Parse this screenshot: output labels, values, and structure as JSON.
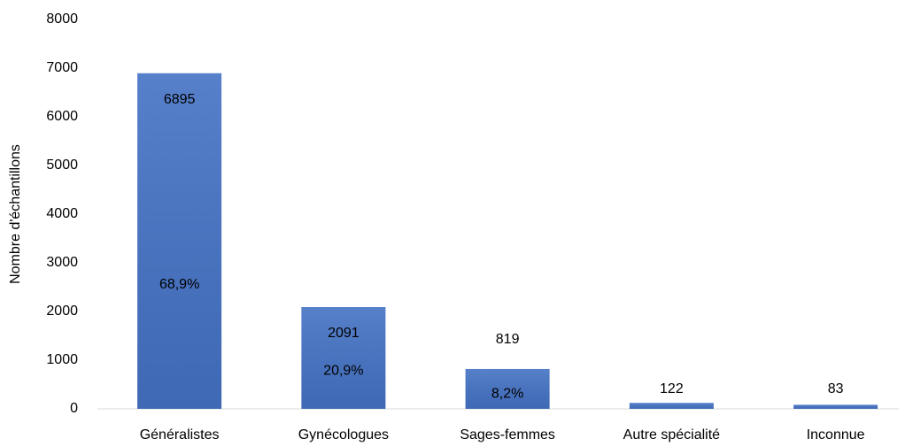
{
  "chart_data": {
    "type": "bar",
    "y_axis_label": "Nombre d'échantillons",
    "categories": [
      "Généralistes",
      "Gynécologues",
      "Sages-femmes",
      "Autre spécialité",
      "Inconnue"
    ],
    "values": [
      6895,
      2091,
      819,
      122,
      83
    ],
    "percent_labels": [
      "68,9%",
      "20,9%",
      "8,2%",
      null,
      null
    ],
    "color": "#4472c4",
    "ylim": [
      0,
      8000
    ],
    "yticks": [
      0,
      1000,
      2000,
      3000,
      4000,
      5000,
      6000,
      7000,
      8000
    ],
    "grid": false
  }
}
